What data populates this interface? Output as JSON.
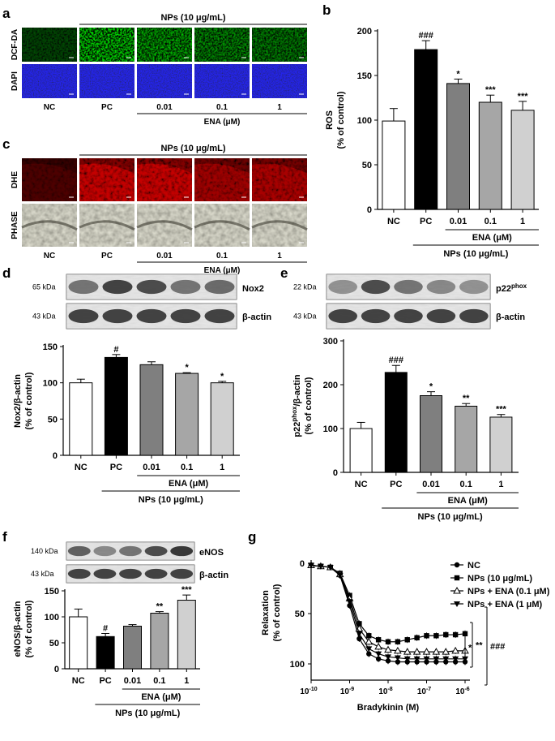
{
  "panels": {
    "a": {
      "letter": "a",
      "treatment_label": "NPs (10 μg/mL)",
      "row_labels": [
        "DCF-DA",
        "DAPI"
      ],
      "col_labels": [
        "NC",
        "PC",
        "0.01",
        "0.1",
        "1"
      ],
      "ena_label": "ENA (μM)"
    },
    "b": {
      "letter": "b",
      "ylabel_line1": "ROS",
      "ylabel_line2": "(% of control)",
      "yticks": [
        "0",
        "50",
        "100",
        "150",
        "200"
      ],
      "categories": [
        "NC",
        "PC",
        "0.01",
        "0.1",
        "1"
      ],
      "values": [
        99,
        179,
        141,
        120,
        111
      ],
      "errors": [
        14,
        10,
        5,
        8,
        10
      ],
      "annotations": [
        "",
        "###",
        "*",
        "***",
        "***"
      ],
      "ena_label": "ENA (μM)",
      "treatment_label": "NPs (10 μg/mL)",
      "ymax": 200
    },
    "c": {
      "letter": "c",
      "treatment_label": "NPs (10 μg/mL)",
      "row_labels": [
        "DHE",
        "PHASE"
      ],
      "col_labels": [
        "NC",
        "PC",
        "0.01",
        "0.1",
        "1"
      ],
      "ena_label": "ENA (μM)"
    },
    "d": {
      "letter": "d",
      "blot_labels": [
        "65 kDa",
        "43 kDa"
      ],
      "blot_names": [
        "Nox2",
        "β-actin"
      ],
      "ylabel_line1": "Nox2/β-actin",
      "ylabel_line2": "(% of control)",
      "yticks": [
        "0",
        "50",
        "100",
        "150"
      ],
      "categories": [
        "NC",
        "PC",
        "0.01",
        "0.1",
        "1"
      ],
      "values": [
        100,
        135,
        125,
        113,
        100
      ],
      "errors": [
        5,
        4,
        4,
        1,
        2
      ],
      "annotations": [
        "",
        "#",
        "",
        "*",
        "*"
      ],
      "ena_label": "ENA (μM)",
      "treatment_label": "NPs (10 μg/mL)",
      "ymax": 150
    },
    "e": {
      "letter": "e",
      "blot_labels": [
        "22 kDa",
        "43 kDa"
      ],
      "blot_name_main": "p22",
      "blot_name_sup": "phox",
      "blot_name_actin": "β-actin",
      "ylabel_main": "p22",
      "ylabel_sup": "phox",
      "ylabel_rest": "/β-actin",
      "ylabel_line2": "(% of control)",
      "yticks": [
        "0",
        "100",
        "200",
        "300"
      ],
      "categories": [
        "NC",
        "PC",
        "0.01",
        "0.1",
        "1"
      ],
      "values": [
        100,
        228,
        175,
        151,
        126
      ],
      "errors": [
        14,
        16,
        9,
        6,
        6
      ],
      "annotations": [
        "",
        "###",
        "*",
        "**",
        "***"
      ],
      "ena_label": "ENA (μM)",
      "treatment_label": "NPs (10 μg/mL)",
      "ymax": 300
    },
    "f": {
      "letter": "f",
      "blot_labels": [
        "140 kDa",
        "43 kDa"
      ],
      "blot_names": [
        "eNOS",
        "β-actin"
      ],
      "ylabel_line1": "eNOS/β-actin",
      "ylabel_line2": "(% of control)",
      "yticks": [
        "0",
        "50",
        "100",
        "150"
      ],
      "categories": [
        "NC",
        "PC",
        "0.01",
        "0.1",
        "1"
      ],
      "values": [
        100,
        62,
        82,
        107,
        132
      ],
      "errors": [
        15,
        6,
        3,
        3,
        10
      ],
      "annotations": [
        "",
        "#",
        "",
        "**",
        "***"
      ],
      "ena_label": "ENA (μM)",
      "treatment_label": "NPs (10 μg/mL)",
      "ymax": 150
    },
    "g": {
      "letter": "g",
      "ylabel_line1": "Relaxation",
      "ylabel_line2": "(% of control)",
      "xlabel": "Bradykinin (M)",
      "yticks": [
        "0",
        "50",
        "100"
      ],
      "xtick_base": "10",
      "xtick_exps": [
        "-10",
        "-9",
        "-8",
        "-7",
        "-6"
      ],
      "legend": [
        "NC",
        "NPs (10 μg/mL)",
        "NPs + ENA (0.1 μM)",
        "NPs + ENA (1 μM)"
      ],
      "sig_marks": [
        "*",
        "**",
        "###"
      ]
    }
  },
  "chart_data": [
    {
      "type": "bar",
      "panel": "b",
      "categories": [
        "NC",
        "PC",
        "0.01",
        "0.1",
        "1"
      ],
      "values": [
        99,
        179,
        141,
        120,
        111
      ],
      "errors": [
        14,
        10,
        5,
        8,
        10
      ],
      "ylabel": "ROS (% of control)",
      "ylim": [
        0,
        200
      ]
    },
    {
      "type": "bar",
      "panel": "d",
      "categories": [
        "NC",
        "PC",
        "0.01",
        "0.1",
        "1"
      ],
      "values": [
        100,
        135,
        125,
        113,
        100
      ],
      "errors": [
        5,
        4,
        4,
        1,
        2
      ],
      "ylabel": "Nox2/β-actin (% of control)",
      "ylim": [
        0,
        150
      ]
    },
    {
      "type": "bar",
      "panel": "e",
      "categories": [
        "NC",
        "PC",
        "0.01",
        "0.1",
        "1"
      ],
      "values": [
        100,
        228,
        175,
        151,
        126
      ],
      "errors": [
        14,
        16,
        9,
        6,
        6
      ],
      "ylabel": "p22phox/β-actin (% of control)",
      "ylim": [
        0,
        300
      ]
    },
    {
      "type": "bar",
      "panel": "f",
      "categories": [
        "NC",
        "PC",
        "0.01",
        "0.1",
        "1"
      ],
      "values": [
        100,
        62,
        82,
        107,
        132
      ],
      "errors": [
        15,
        6,
        3,
        3,
        10
      ],
      "ylabel": "eNOS/β-actin (% of control)",
      "ylim": [
        0,
        150
      ]
    },
    {
      "type": "line",
      "panel": "g",
      "x": [
        -10,
        -9.75,
        -9.5,
        -9.25,
        -9,
        -8.75,
        -8.5,
        -8.25,
        -8,
        -7.75,
        -7.5,
        -7.25,
        -7,
        -6.75,
        -6.5,
        -6.25,
        -6
      ],
      "x_scale": "log10",
      "series": [
        {
          "name": "NC",
          "values": [
            2,
            3,
            4,
            12,
            42,
            75,
            90,
            95,
            97,
            98,
            98,
            98,
            98,
            98,
            98,
            98,
            98
          ]
        },
        {
          "name": "NPs (10 μg/mL)",
          "values": [
            2,
            3,
            4,
            10,
            32,
            60,
            72,
            76,
            78,
            78,
            76,
            74,
            72,
            72,
            71,
            71,
            70
          ]
        },
        {
          "name": "NPs + ENA (0.1 μM)",
          "values": [
            2,
            3,
            4,
            11,
            35,
            65,
            78,
            83,
            86,
            87,
            88,
            88,
            88,
            88,
            88,
            87,
            87
          ]
        },
        {
          "name": "NPs + ENA (1 μM)",
          "values": [
            2,
            3,
            4,
            12,
            38,
            70,
            85,
            90,
            93,
            94,
            95,
            95,
            95,
            95,
            95,
            95,
            95
          ]
        }
      ],
      "ylabel": "Relaxation (% of control)",
      "xlabel": "Bradykinin (M)",
      "ylim": [
        0,
        100
      ],
      "y_inverted": true,
      "xlim": [
        -10,
        -6
      ]
    }
  ]
}
